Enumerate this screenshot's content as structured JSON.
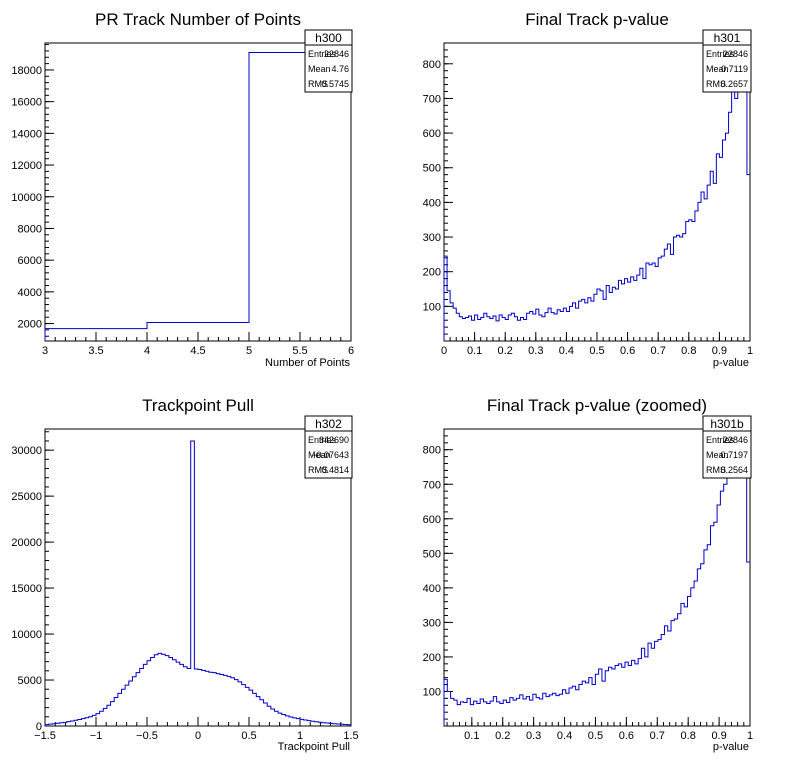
{
  "chart_data": [
    {
      "type": "histogram",
      "title": "PR Track Number of Points",
      "xlabel": "Number of Points",
      "ylabel": "",
      "xlim": [
        3,
        6
      ],
      "ylim": [
        900,
        19700
      ],
      "xticks": [
        "3",
        "3.5",
        "4",
        "4.5",
        "5",
        "5.5",
        "6"
      ],
      "yticks": [
        "2000",
        "4000",
        "6000",
        "8000",
        "10000",
        "12000",
        "14000",
        "16000",
        "18000"
      ],
      "stats": {
        "name": "h300",
        "entries_label": "Entries",
        "entries": "22846",
        "mean_label": "Mean",
        "mean": "4.76",
        "rms_label": "RMS",
        "rms": "0.5745"
      },
      "bins": [
        {
          "x0": 3,
          "x1": 4,
          "y": 1680
        },
        {
          "x0": 4,
          "x1": 5,
          "y": 2070
        },
        {
          "x0": 5,
          "x1": 6,
          "y": 19100
        }
      ]
    },
    {
      "type": "histogram",
      "title": "Final Track p-value",
      "xlabel": "p-value",
      "ylabel": "",
      "xlim": [
        0,
        1
      ],
      "ylim": [
        0,
        860
      ],
      "xticks": [
        "0",
        "0.1",
        "0.2",
        "0.3",
        "0.4",
        "0.5",
        "0.6",
        "0.7",
        "0.8",
        "0.9",
        "1"
      ],
      "yticks": [
        "100",
        "200",
        "300",
        "400",
        "500",
        "600",
        "700",
        "800"
      ],
      "stats": {
        "name": "h301",
        "entries_label": "Entries",
        "entries": "22846",
        "mean_label": "Mean",
        "mean": "0.7119",
        "rms_label": "RMS",
        "rms": "0.2657"
      },
      "bin_range": [
        0,
        1
      ],
      "values": [
        245,
        145,
        110,
        95,
        80,
        70,
        65,
        68,
        72,
        60,
        75,
        62,
        68,
        80,
        70,
        65,
        72,
        58,
        75,
        68,
        62,
        75,
        80,
        70,
        60,
        68,
        62,
        80,
        85,
        78,
        92,
        75,
        70,
        82,
        95,
        82,
        78,
        90,
        85,
        95,
        85,
        100,
        110,
        95,
        115,
        120,
        110,
        125,
        115,
        135,
        150,
        145,
        120,
        160,
        140,
        155,
        150,
        175,
        165,
        180,
        170,
        185,
        175,
        190,
        210,
        180,
        225,
        220,
        225,
        215,
        240,
        245,
        265,
        280,
        250,
        300,
        305,
        300,
        310,
        345,
        350,
        345,
        375,
        400,
        430,
        410,
        450,
        490,
        455,
        540,
        530,
        580,
        600,
        660,
        720,
        700,
        760,
        820,
        830,
        480
      ]
    },
    {
      "type": "histogram",
      "title": "Trackpoint Pull",
      "xlabel": "Trackpoint Pull",
      "ylabel": "",
      "xlim": [
        -1.5,
        1.5
      ],
      "ylim": [
        0,
        32300
      ],
      "xticks": [
        "−1.5",
        "−1",
        "−0.5",
        "0",
        "0.5",
        "1",
        "1.5"
      ],
      "yticks": [
        "0",
        "5000",
        "10000",
        "15000",
        "20000",
        "25000",
        "30000"
      ],
      "stats": {
        "name": "h302",
        "entries_label": "Entries",
        "entries": "342690",
        "mean_label": "Mean",
        "mean": "−0.07643",
        "rms_label": "RMS",
        "rms": "0.4814"
      },
      "bin_range": [
        -1.5,
        1.5
      ],
      "values": [
        150,
        200,
        250,
        300,
        350,
        400,
        470,
        550,
        620,
        700,
        800,
        900,
        1000,
        1150,
        1350,
        1600,
        1900,
        2250,
        2650,
        3100,
        3550,
        4000,
        4450,
        4900,
        5350,
        5800,
        6250,
        6700,
        7100,
        7450,
        7750,
        7900,
        7800,
        7650,
        7450,
        7200,
        6950,
        6700,
        6450,
        6250,
        31000,
        6200,
        6150,
        6050,
        5950,
        5850,
        5800,
        5700,
        5600,
        5500,
        5400,
        5250,
        5050,
        4800,
        4500,
        4200,
        3900,
        3550,
        3200,
        2850,
        2500,
        2150,
        1850,
        1600,
        1400,
        1250,
        1100,
        980,
        880,
        800,
        720,
        650,
        580,
        520,
        460,
        410,
        360,
        320,
        280,
        250,
        220,
        190,
        165,
        140
      ]
    },
    {
      "type": "histogram",
      "title": "Final Track p-value (zoomed)",
      "xlabel": "p-value",
      "ylabel": "",
      "xlim": [
        0.01,
        1
      ],
      "ylim": [
        0,
        860
      ],
      "xticks": [
        "0.1",
        "0.2",
        "0.3",
        "0.4",
        "0.5",
        "0.6",
        "0.7",
        "0.8",
        "0.9",
        "1"
      ],
      "yticks": [
        "100",
        "200",
        "300",
        "400",
        "500",
        "600",
        "700",
        "800"
      ],
      "stats": {
        "name": "h301b",
        "entries_label": "Entries",
        "entries": "22846",
        "mean_label": "Mean",
        "mean": "0.7197",
        "rms_label": "RMS",
        "rms": "0.2564"
      },
      "bin_range": [
        0.01,
        1
      ],
      "values": [
        135,
        100,
        80,
        75,
        62,
        70,
        68,
        80,
        62,
        72,
        65,
        78,
        70,
        65,
        72,
        85,
        70,
        65,
        75,
        68,
        82,
        75,
        80,
        90,
        78,
        85,
        75,
        92,
        82,
        78,
        95,
        85,
        90,
        95,
        88,
        92,
        105,
        95,
        110,
        115,
        105,
        120,
        130,
        125,
        140,
        120,
        150,
        165,
        130,
        160,
        170,
        165,
        175,
        180,
        170,
        185,
        175,
        190,
        180,
        195,
        225,
        200,
        240,
        225,
        245,
        250,
        265,
        290,
        275,
        305,
        310,
        325,
        355,
        345,
        375,
        400,
        420,
        455,
        470,
        510,
        525,
        580,
        590,
        640,
        680,
        700,
        720,
        730,
        800,
        830,
        810,
        840,
        475
      ]
    }
  ]
}
